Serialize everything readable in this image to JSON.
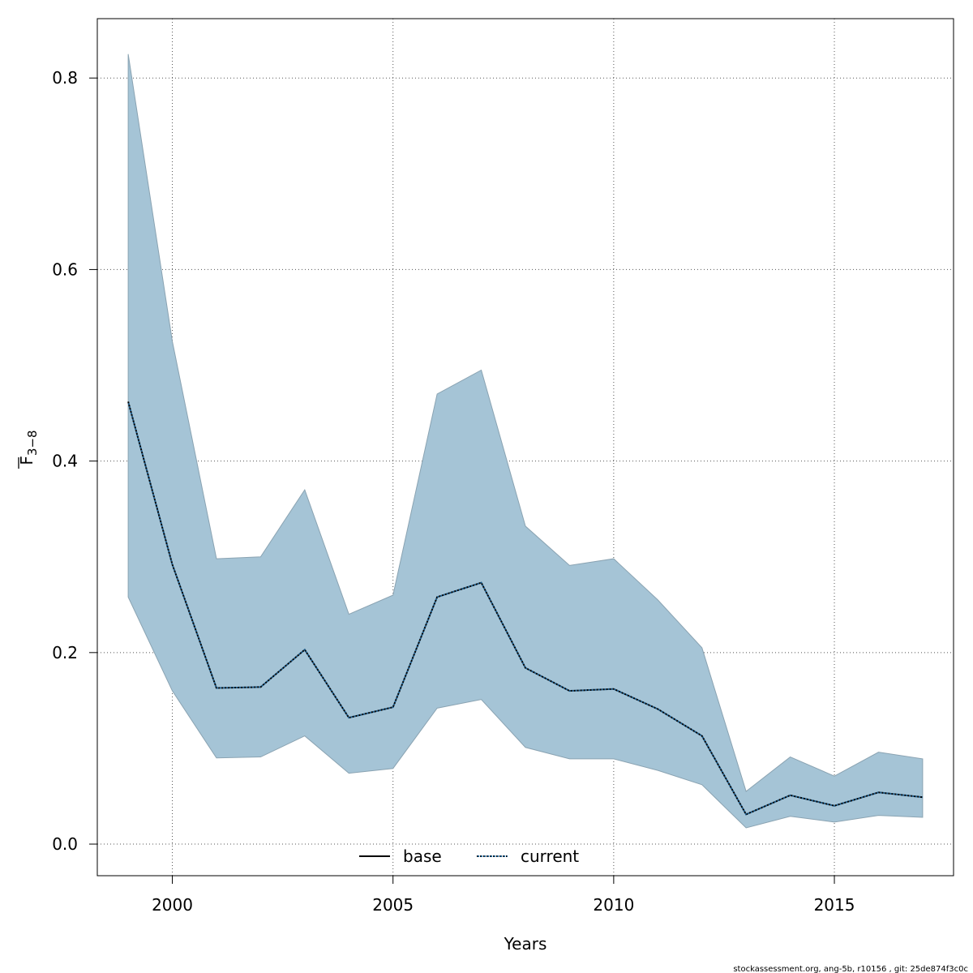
{
  "chart_data": {
    "type": "area",
    "xlabel": "Years",
    "ylabel": "F3-8",
    "ylabel_main": "F",
    "ylabel_sub": "3−8",
    "xlim": [
      1998.3,
      2017.7
    ],
    "ylim": [
      -0.033,
      0.862
    ],
    "xticks": [
      2000,
      2005,
      2010,
      2015
    ],
    "xtick_labels": [
      "2000",
      "2005",
      "2010",
      "2015"
    ],
    "yticks": [
      0.0,
      0.2,
      0.4,
      0.6,
      0.8
    ],
    "ytick_labels": [
      "0.0",
      "0.2",
      "0.4",
      "0.6",
      "0.8"
    ],
    "grid": true,
    "legend_position": "bottom-center",
    "x": [
      1999,
      2000,
      2001,
      2002,
      2003,
      2004,
      2005,
      2006,
      2007,
      2008,
      2009,
      2010,
      2011,
      2012,
      2013,
      2014,
      2015,
      2016,
      2017
    ],
    "band": {
      "upper": [
        0.825,
        0.525,
        0.298,
        0.3,
        0.37,
        0.24,
        0.26,
        0.47,
        0.495,
        0.332,
        0.291,
        0.298,
        0.255,
        0.205,
        0.055,
        0.091,
        0.071,
        0.096,
        0.089
      ],
      "lower": [
        0.258,
        0.16,
        0.09,
        0.091,
        0.113,
        0.074,
        0.079,
        0.142,
        0.151,
        0.101,
        0.089,
        0.089,
        0.077,
        0.062,
        0.017,
        0.029,
        0.023,
        0.03,
        0.028
      ]
    },
    "series": [
      {
        "name": "base",
        "values": [
          0.462,
          0.292,
          0.163,
          0.164,
          0.203,
          0.132,
          0.143,
          0.258,
          0.273,
          0.184,
          0.16,
          0.162,
          0.141,
          0.113,
          0.031,
          0.051,
          0.04,
          0.054,
          0.049
        ]
      },
      {
        "name": "current",
        "values": [
          0.462,
          0.292,
          0.163,
          0.164,
          0.203,
          0.132,
          0.143,
          0.258,
          0.273,
          0.184,
          0.16,
          0.162,
          0.141,
          0.113,
          0.031,
          0.051,
          0.04,
          0.054,
          0.049
        ]
      }
    ]
  },
  "colors": {
    "band_fill": "#a5c4d6",
    "band_stroke": "#8aa3b2",
    "base_line": "#000000",
    "current_line": "#1a5a8a",
    "grid": "#555555"
  },
  "footer": "stockassessment.org, ang-5b, r10156 , git: 25de874f3c0c"
}
